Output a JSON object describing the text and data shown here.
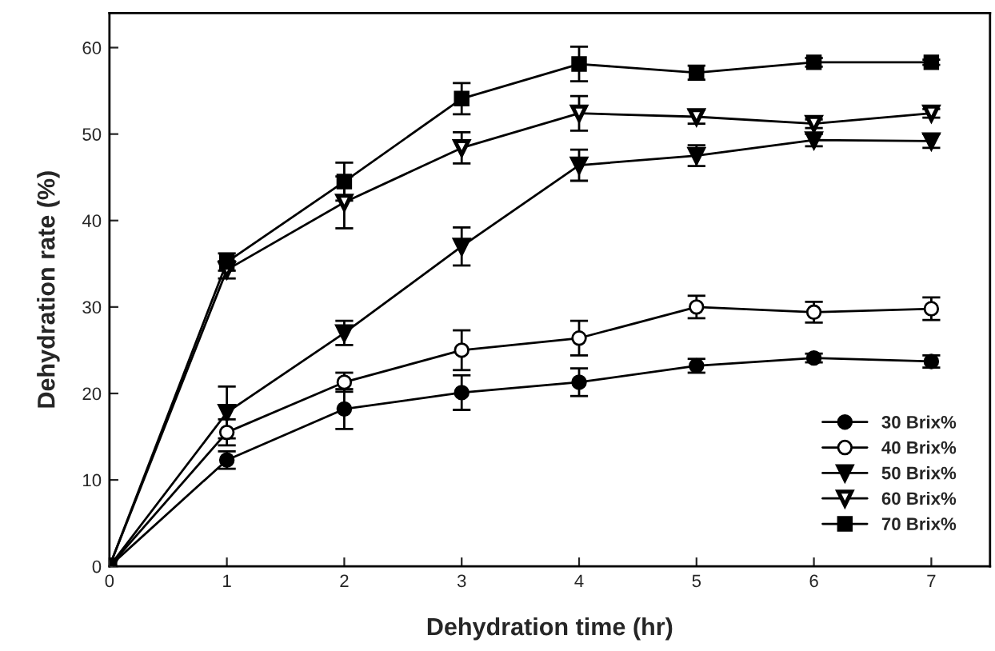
{
  "chart_data": {
    "type": "line",
    "xlabel": "Dehydration time (hr)",
    "ylabel": "Dehydration rate (%)",
    "x": [
      0,
      1,
      2,
      3,
      4,
      5,
      6,
      7
    ],
    "xlim": [
      0,
      7.5
    ],
    "xticks": [
      0,
      1,
      2,
      3,
      4,
      5,
      6,
      7
    ],
    "ylim": [
      0,
      64
    ],
    "yticks": [
      0,
      10,
      20,
      30,
      40,
      50,
      60
    ],
    "grid": false,
    "legend": "bottom right",
    "line_style": "solid",
    "series": [
      {
        "name": "30 Brix%",
        "color": "#000000",
        "marker": "circle",
        "values": [
          0,
          12.3,
          18.2,
          20.1,
          21.3,
          23.2,
          24.1,
          23.7
        ],
        "errors": [
          null,
          1.0,
          2.3,
          2.0,
          1.6,
          0.8,
          0.5,
          0.7
        ]
      },
      {
        "name": "40 Brix%",
        "color": "#ffffff",
        "marker": "circle",
        "values": [
          0,
          15.5,
          21.3,
          25.0,
          26.4,
          30.0,
          29.4,
          29.8
        ],
        "errors": [
          null,
          1.5,
          1.1,
          2.3,
          2.0,
          1.3,
          1.2,
          1.3
        ]
      },
      {
        "name": "50 Brix%",
        "color": "#000000",
        "marker": "triangle",
        "values": [
          0,
          17.8,
          27.0,
          37.0,
          46.4,
          47.5,
          49.3,
          49.2
        ],
        "errors": [
          null,
          3.0,
          1.4,
          2.2,
          1.8,
          1.2,
          0.7,
          0.8
        ]
      },
      {
        "name": "60 Brix%",
        "color": "#ffffff",
        "marker": "triangle",
        "values": [
          0,
          34.3,
          42.1,
          48.4,
          52.4,
          52.0,
          51.2,
          52.4
        ],
        "errors": [
          null,
          1.0,
          3.0,
          1.8,
          2.0,
          0.8,
          0.5,
          0.5
        ]
      },
      {
        "name": "70 Brix%",
        "color": "#000000",
        "marker": "square",
        "values": [
          0,
          35.2,
          44.5,
          54.1,
          58.1,
          57.1,
          58.3,
          58.3
        ],
        "errors": [
          null,
          1.0,
          2.2,
          1.8,
          2.0,
          0.8,
          0.5,
          0.3
        ]
      }
    ]
  }
}
